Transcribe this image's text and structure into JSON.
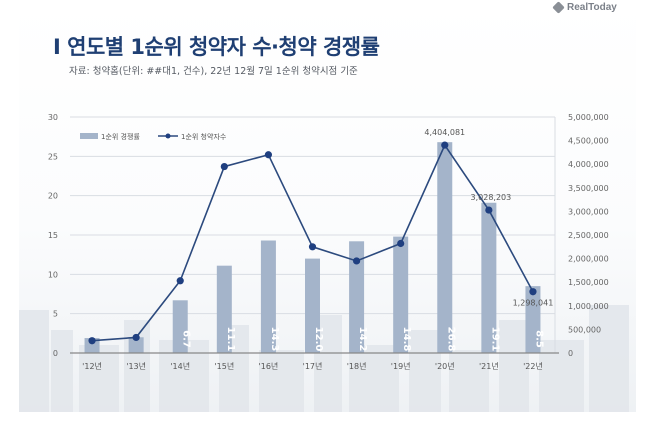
{
  "header": {
    "logo_text": "RealToday",
    "title": "I 연도별 1순위 청약자 수·청약 경쟁률",
    "subtitle": "자료: 청약홈(단위: ##대1, 건수), 22년 12월 7일 1순위 청약시점 기준"
  },
  "colors": {
    "title": "#1f3f73",
    "bar": "#a4b4ca",
    "line": "#2c4a7e",
    "marker": "#1f3f80",
    "grid": "#d9dde3"
  },
  "chart_data": {
    "type": "bar+line",
    "title": "연도별 1순위 청약자 수·청약 경쟁률",
    "categories": [
      "'12년",
      "'13년",
      "'14년",
      "'15년",
      "'16년",
      "'17년",
      "'18년",
      "'19년",
      "'20년",
      "'21년",
      "'22년"
    ],
    "series": [
      {
        "name": "1순위 경쟁률",
        "type": "bar",
        "axis": "left",
        "values": [
          1.9,
          2.0,
          6.7,
          11.1,
          14.3,
          12.0,
          14.2,
          14.8,
          26.8,
          19.1,
          8.5
        ],
        "labels": [
          "",
          "",
          "6.7",
          "11.1",
          "14.3",
          "12.0",
          "14.2",
          "14.8",
          "26.8",
          "19.1",
          "8.5"
        ]
      },
      {
        "name": "1순위 청약자수",
        "type": "line",
        "axis": "right",
        "values": [
          260000,
          330000,
          1530000,
          3950000,
          4200000,
          2250000,
          1950000,
          2320000,
          4404081,
          3028203,
          1298041
        ],
        "labels": [
          "",
          "",
          "",
          "",
          "",
          "",
          "",
          "",
          "4,404,081",
          "3,028,203",
          "1,298,041"
        ]
      }
    ],
    "left_axis": {
      "ylim": [
        0,
        30
      ],
      "ticks": [
        "0",
        "5",
        "10",
        "15",
        "20",
        "25",
        "30"
      ]
    },
    "right_axis": {
      "ylim": [
        0,
        5000000
      ],
      "ticks": [
        "0",
        "500,000",
        "1,000,000",
        "1,500,000",
        "2,000,000",
        "2,500,000",
        "3,000,000",
        "3,500,000",
        "4,000,000",
        "4,500,000",
        "5,000,000"
      ]
    },
    "grid": true,
    "legend_position": "top-left"
  }
}
